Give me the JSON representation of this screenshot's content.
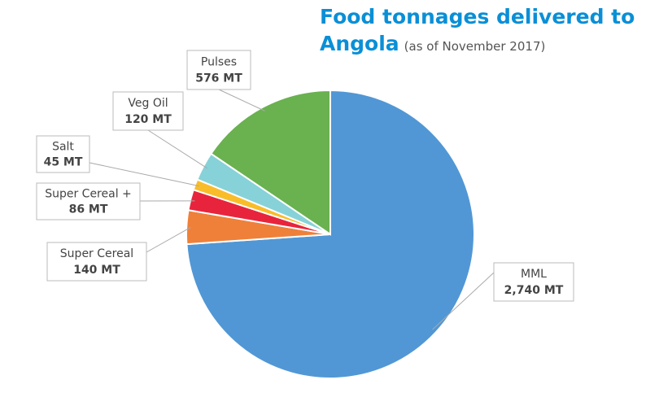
{
  "chart_data": {
    "type": "pie",
    "title": "Food tonnages delivered to Angola",
    "subtitle": "(as of November 2017)",
    "categories": [
      "MML",
      "Super Cereal",
      "Super Cereal +",
      "Salt",
      "Veg Oil",
      "Pulses"
    ],
    "values": [
      2740,
      140,
      86,
      45,
      120,
      576
    ],
    "value_labels": [
      "2,740 MT",
      "140 MT",
      "86 MT",
      "45 MT",
      "120 MT",
      "576 MT"
    ],
    "colors": [
      "#5197d5",
      "#ef8039",
      "#e8243c",
      "#f9bd2a",
      "#86d2d8",
      "#6ab150"
    ]
  }
}
